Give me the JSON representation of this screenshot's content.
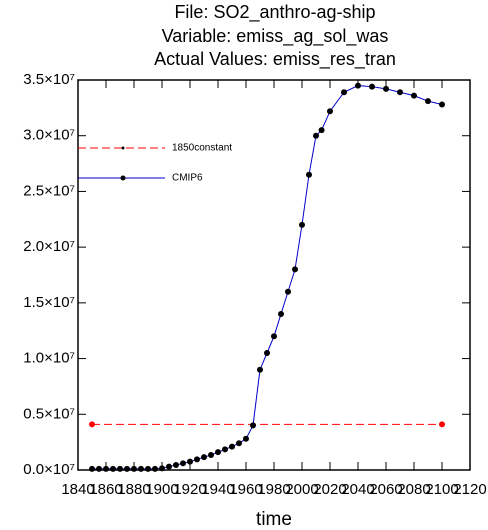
{
  "chart_data": {
    "type": "line",
    "title": [
      "File: SO2_anthro-ag-ship",
      "Variable: emiss_ag_sol_was",
      "Actual Values: emiss_res_tran"
    ],
    "x_label": "time",
    "series": [
      {
        "name": "1850constant",
        "color": "#ff0000",
        "dashed": true,
        "x": [
          1850,
          2100
        ],
        "values": [
          4100000,
          4100000
        ]
      },
      {
        "name": "CMIP6",
        "color": "#0000cc",
        "marker_color": "#000000",
        "dashed": false,
        "x": [
          1850,
          1855,
          1860,
          1865,
          1870,
          1875,
          1880,
          1885,
          1890,
          1895,
          1900,
          1905,
          1910,
          1915,
          1920,
          1925,
          1930,
          1935,
          1940,
          1945,
          1950,
          1955,
          1960,
          1965,
          1970,
          1975,
          1980,
          1985,
          1990,
          1995,
          2000,
          2005,
          2010,
          2014,
          2020,
          2030,
          2040,
          2050,
          2060,
          2070,
          2080,
          2090,
          2100
        ],
        "values": [
          100000,
          100000,
          100000,
          100000,
          100000,
          100000,
          100000,
          100000,
          100000,
          100000,
          150000,
          300000,
          450000,
          600000,
          750000,
          950000,
          1150000,
          1350000,
          1600000,
          1850000,
          2100000,
          2400000,
          2800000,
          4000000,
          9000000,
          10500000,
          12000000,
          14000000,
          16000000,
          18000000,
          22000000,
          26500000,
          30000000,
          30500000,
          32200000,
          33900000,
          34500000,
          34400000,
          34200000,
          33900000,
          33600000,
          33100000,
          32800000
        ]
      }
    ],
    "xlim": [
      1840,
      2120
    ],
    "xticks": [
      1840,
      1860,
      1880,
      1900,
      1920,
      1940,
      1960,
      1980,
      2000,
      2020,
      2040,
      2060,
      2080,
      2100,
      2120
    ],
    "ylim": [
      0,
      35000000
    ],
    "yticks": [
      {
        "value": 0,
        "label": "0.0×10⁷"
      },
      {
        "value": 5000000,
        "label": "0.5×10⁷"
      },
      {
        "value": 10000000,
        "label": "1.0×10⁷"
      },
      {
        "value": 15000000,
        "label": "1.5×10⁷"
      },
      {
        "value": 20000000,
        "label": "2.0×10⁷"
      },
      {
        "value": 25000000,
        "label": "2.5×10⁷"
      },
      {
        "value": 30000000,
        "label": "3.0×10⁷"
      },
      {
        "value": 35000000,
        "label": "3.5×10⁷"
      }
    ],
    "grid": false
  }
}
